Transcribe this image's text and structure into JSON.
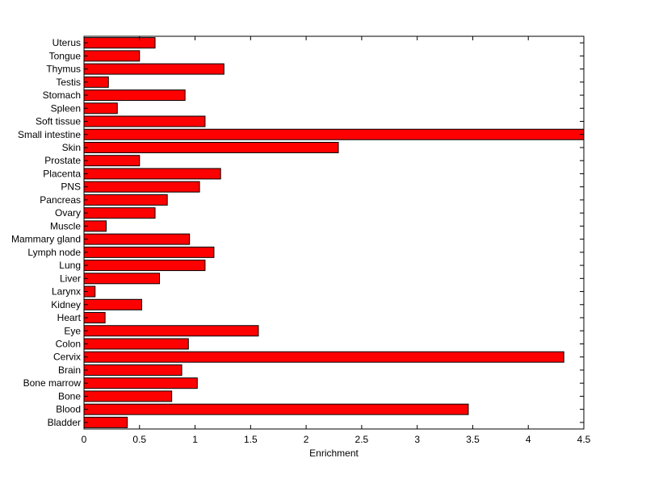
{
  "chart_data": {
    "type": "bar",
    "orientation": "horizontal",
    "title": "",
    "xlabel": "Enrichment",
    "ylabel": "",
    "xlim": [
      0,
      4.5
    ],
    "xticks": [
      "0",
      "0.5",
      "1",
      "1.5",
      "2",
      "2.5",
      "3",
      "3.5",
      "4",
      "4.5"
    ],
    "grid": false,
    "bar_color": "#ff0000",
    "bar_edge_color": "#000000",
    "categories": [
      "Bladder",
      "Blood",
      "Bone",
      "Bone marrow",
      "Brain",
      "Cervix",
      "Colon",
      "Eye",
      "Heart",
      "Kidney",
      "Larynx",
      "Liver",
      "Lung",
      "Lymph node",
      "Mammary gland",
      "Muscle",
      "Ovary",
      "Pancreas",
      "PNS",
      "Placenta",
      "Prostate",
      "Skin",
      "Small intestine",
      "Soft tissue",
      "Spleen",
      "Stomach",
      "Testis",
      "Thymus",
      "Tongue",
      "Uterus"
    ],
    "values": [
      0.39,
      3.46,
      0.79,
      1.02,
      0.88,
      4.32,
      0.94,
      1.57,
      0.19,
      0.52,
      0.1,
      0.68,
      1.09,
      1.17,
      0.95,
      0.2,
      0.64,
      0.75,
      1.04,
      1.23,
      0.5,
      2.29,
      4.5,
      1.09,
      0.3,
      0.91,
      0.22,
      1.26,
      0.5,
      0.64
    ]
  }
}
